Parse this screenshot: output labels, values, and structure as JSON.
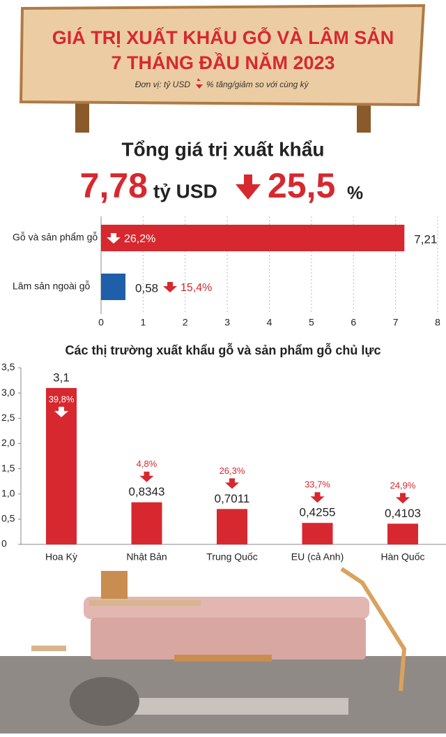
{
  "header": {
    "title_lines": [
      "GIÁ TRỊ XUẤT KHẨU GỖ VÀ LÂM SẢN",
      "7 THÁNG ĐẦU NĂM 2023"
    ],
    "unit": "Đơn vị: tỷ USD",
    "legend": "% tăng/giảm so với cùng kỳ"
  },
  "summary": {
    "title": "Tổng giá trị xuất khẩu",
    "value": "7,78",
    "unit": "tỷ USD",
    "change": "25,5",
    "change_unit": "%"
  },
  "chart_data": [
    {
      "type": "hbar",
      "categories": [
        "Gỗ và sản phẩm gỗ",
        "Lâm sản ngoài gỗ"
      ],
      "values": [
        7.21,
        0.58
      ],
      "value_labels": [
        "7,21",
        "0,58"
      ],
      "change_labels": [
        "26,2%",
        "15,4%"
      ],
      "colors": [
        "#d7282f",
        "#1f5ea8"
      ],
      "xlim": [
        0,
        8
      ],
      "xticks": [
        0,
        1,
        2,
        3,
        4,
        5,
        6,
        7,
        8
      ],
      "grid": true
    },
    {
      "type": "bar",
      "title": "Các thị trường xuất khẩu gỗ và sản phẩm gỗ chủ lực",
      "categories": [
        "Hoa Kỳ",
        "Nhật Bản",
        "Trung Quốc",
        "EU (cả Anh)",
        "Hàn Quốc"
      ],
      "values": [
        3.1,
        0.8343,
        0.7011,
        0.4255,
        0.4103
      ],
      "value_labels": [
        "3,1",
        "0,8343",
        "0,7011",
        "0,4255",
        "0,4103"
      ],
      "change_labels": [
        "39,8%",
        "4,8%",
        "26,3%",
        "33,7%",
        "24,9%"
      ],
      "color": "#d7282f",
      "ylim": [
        0,
        3.5
      ],
      "yticks": [
        0,
        {
          "value": 0.5,
          "label": "0,5"
        },
        {
          "value": 1,
          "label": "1,0"
        },
        {
          "value": 1.5,
          "label": "1,5"
        },
        {
          "value": 2,
          "label": "2,0"
        },
        {
          "value": 2.5,
          "label": "2,5"
        },
        {
          "value": 3,
          "label": "3,0"
        },
        {
          "value": 3.5,
          "label": "3,5"
        }
      ]
    }
  ]
}
